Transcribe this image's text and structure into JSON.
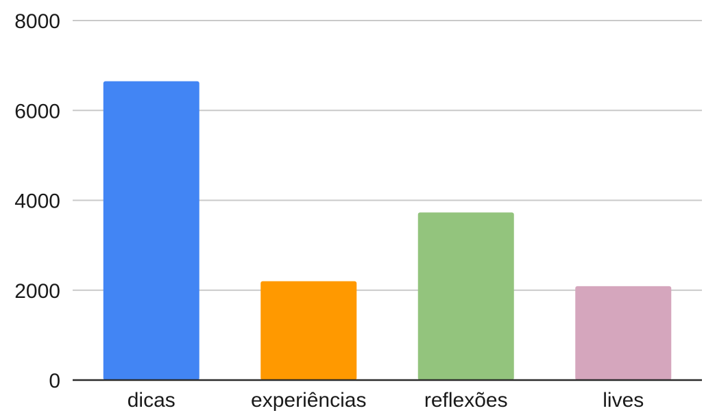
{
  "chart_data": {
    "type": "bar",
    "title": "",
    "xlabel": "",
    "ylabel": "",
    "categories": [
      "dicas",
      "experiências",
      "reflexões",
      "lives"
    ],
    "values": [
      6650,
      2200,
      3730,
      2090
    ],
    "colors": [
      "#4285f4",
      "#ff9900",
      "#93c47d",
      "#d5a6bd"
    ],
    "ylim": [
      0,
      8000
    ],
    "yticks": [
      0,
      2000,
      4000,
      6000,
      8000
    ],
    "ytick_labels": [
      "0",
      "2000",
      "4000",
      "6000",
      "8000"
    ],
    "grid": true,
    "legend": "none"
  }
}
